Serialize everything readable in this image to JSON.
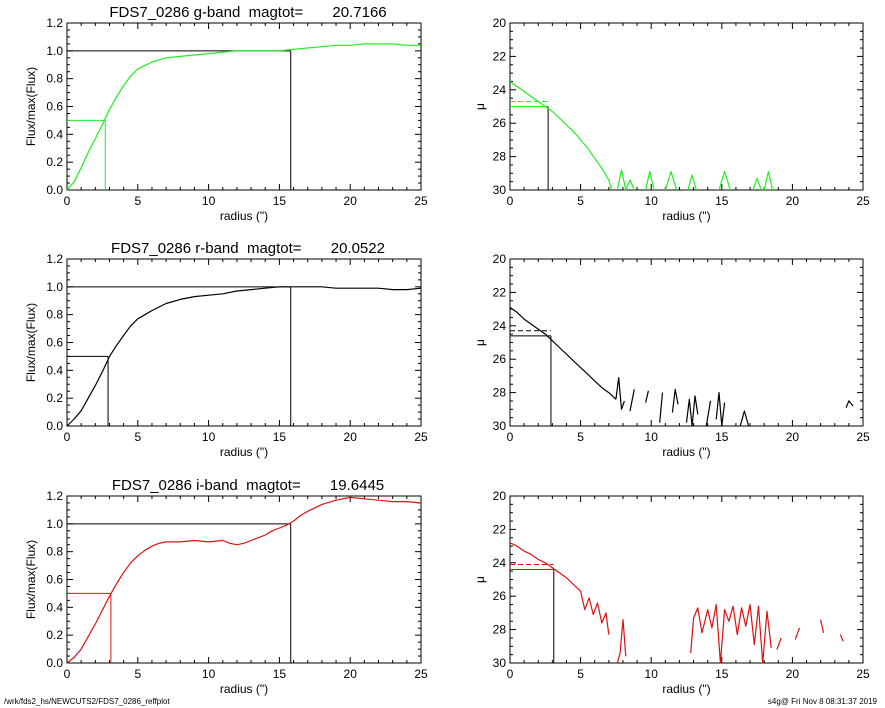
{
  "footer": {
    "path": "/wrk/fds2_hs/NEWCUTS2/FDS7_0286_reffplot",
    "stamp": "s4g@  Fri Nov  8 08:31:37 2019"
  },
  "colors": {
    "g": "#22ee22",
    "r": "#000000",
    "i": "#dd1111",
    "axis": "#000000"
  },
  "chart_data": [
    {
      "type": "line",
      "panel": "growth-curve-g",
      "title": "FDS7_0286 g-band  magtot=       20.7166",
      "color": "g",
      "xlabel": "radius (\")",
      "ylabel": "Flux/max(Flux)",
      "xlim": [
        0,
        25
      ],
      "ylim": [
        0,
        1.2
      ],
      "x_ticks": [
        0,
        5,
        10,
        15,
        20,
        25
      ],
      "y_ticks": [
        "0.0",
        "0.2",
        "0.4",
        "0.6",
        "0.8",
        "1.0",
        "1.2"
      ],
      "half_light_radius": 2.7,
      "total_radius": 15.8,
      "series": [
        {
          "x": [
            0,
            0.5,
            1,
            1.5,
            2,
            2.5,
            3,
            3.5,
            4,
            4.5,
            5,
            6,
            7,
            8,
            9,
            10,
            11,
            12,
            13,
            14,
            15,
            16,
            17,
            18,
            19,
            20,
            21,
            22,
            23,
            24,
            25
          ],
          "y": [
            0,
            0.06,
            0.16,
            0.27,
            0.37,
            0.47,
            0.58,
            0.67,
            0.75,
            0.82,
            0.87,
            0.92,
            0.95,
            0.96,
            0.97,
            0.98,
            0.99,
            1.0,
            1.0,
            1.0,
            1.0,
            1.01,
            1.02,
            1.03,
            1.04,
            1.04,
            1.05,
            1.05,
            1.05,
            1.04,
            1.04
          ]
        }
      ]
    },
    {
      "type": "line",
      "panel": "profile-g",
      "color": "g",
      "xlabel": "radius (\")",
      "ylabel": "μ",
      "xlim": [
        0,
        25
      ],
      "ylim": [
        30,
        20
      ],
      "x_ticks": [
        0,
        5,
        10,
        15,
        20,
        25
      ],
      "y_ticks": [
        "20",
        "22",
        "24",
        "26",
        "28",
        "30"
      ],
      "effective_radius": 2.7,
      "mu_e": 25.0,
      "mu_mean": 24.7,
      "series": [
        {
          "x": [
            0,
            0.5,
            1,
            1.5,
            2,
            2.5,
            3,
            3.5,
            4,
            4.5,
            5,
            5.5,
            6,
            6.5,
            7,
            7.2
          ],
          "y": [
            23.5,
            23.8,
            24.1,
            24.4,
            24.7,
            25.0,
            25.3,
            25.7,
            26.1,
            26.5,
            27.0,
            27.5,
            28.1,
            28.7,
            29.4,
            30.0
          ]
        },
        {
          "x": [
            7.6,
            7.9,
            8.2,
            8.5,
            8.8
          ],
          "y": [
            30.0,
            28.8,
            30.0,
            29.4,
            30.0
          ]
        },
        {
          "x": [
            9.6,
            9.9,
            10.2
          ],
          "y": [
            30.0,
            28.9,
            30.0
          ]
        },
        {
          "x": [
            11.0,
            11.4,
            11.8
          ],
          "y": [
            30.0,
            28.9,
            30.0
          ]
        },
        {
          "x": [
            12.6,
            12.9,
            13.2
          ],
          "y": [
            30.0,
            29.1,
            30.0
          ]
        },
        {
          "x": [
            14.8,
            15.2,
            15.6
          ],
          "y": [
            30.0,
            28.9,
            30.0
          ]
        },
        {
          "x": [
            17.2,
            17.5,
            17.8
          ],
          "y": [
            30.0,
            29.3,
            30.0
          ]
        },
        {
          "x": [
            18.0,
            18.3,
            18.6
          ],
          "y": [
            30.0,
            28.9,
            30.0
          ]
        }
      ]
    },
    {
      "type": "line",
      "panel": "growth-curve-r",
      "title": "FDS7_0286 r-band  magtot=       20.0522",
      "color": "r",
      "xlabel": "radius (\")",
      "ylabel": "Flux/max(Flux)",
      "xlim": [
        0,
        25
      ],
      "ylim": [
        0,
        1.2
      ],
      "x_ticks": [
        0,
        5,
        10,
        15,
        20,
        25
      ],
      "y_ticks": [
        "0.0",
        "0.2",
        "0.4",
        "0.6",
        "0.8",
        "1.0",
        "1.2"
      ],
      "half_light_radius": 2.9,
      "total_radius": 15.8,
      "series": [
        {
          "x": [
            0,
            0.5,
            1,
            1.5,
            2,
            2.5,
            3,
            3.5,
            4,
            4.5,
            5,
            5.5,
            6,
            7,
            8,
            9,
            10,
            11,
            12,
            13,
            14,
            15,
            16,
            17,
            18,
            19,
            20,
            21,
            22,
            23,
            24,
            25
          ],
          "y": [
            0,
            0.05,
            0.11,
            0.2,
            0.29,
            0.39,
            0.5,
            0.58,
            0.65,
            0.72,
            0.77,
            0.8,
            0.83,
            0.88,
            0.91,
            0.93,
            0.94,
            0.95,
            0.97,
            0.98,
            0.99,
            1.0,
            1.0,
            1.0,
            1.0,
            0.99,
            0.99,
            0.99,
            0.99,
            0.98,
            0.98,
            0.99
          ]
        }
      ]
    },
    {
      "type": "line",
      "panel": "profile-r",
      "color": "r",
      "xlabel": "radius (\")",
      "ylabel": "μ",
      "xlim": [
        0,
        25
      ],
      "ylim": [
        30,
        20
      ],
      "x_ticks": [
        0,
        5,
        10,
        15,
        20,
        25
      ],
      "y_ticks": [
        "20",
        "22",
        "24",
        "26",
        "28",
        "30"
      ],
      "effective_radius": 2.9,
      "mu_e": 24.6,
      "mu_mean": 24.3,
      "series": [
        {
          "x": [
            0,
            0.5,
            1,
            1.5,
            2,
            2.5,
            3,
            3.5,
            4,
            4.5,
            5,
            5.5,
            6,
            6.5,
            7,
            7.5
          ],
          "y": [
            22.9,
            23.2,
            23.6,
            23.9,
            24.2,
            24.5,
            24.9,
            25.3,
            25.7,
            26.1,
            26.5,
            26.9,
            27.3,
            27.7,
            28.0,
            28.4
          ]
        },
        {
          "x": [
            7.5,
            7.7,
            7.9,
            8.1
          ],
          "y": [
            28.4,
            27.1,
            29.0,
            28.5
          ]
        },
        {
          "x": [
            8.5,
            8.8
          ],
          "y": [
            29.1,
            27.8
          ]
        },
        {
          "x": [
            9.6,
            9.8
          ],
          "y": [
            28.6,
            27.9
          ]
        },
        {
          "x": [
            10.6,
            10.8
          ],
          "y": [
            29.8,
            28.0
          ]
        },
        {
          "x": [
            11.5,
            11.7,
            11.9
          ],
          "y": [
            29.2,
            27.8,
            28.7
          ]
        },
        {
          "x": [
            12.5,
            12.7,
            12.9,
            13.1,
            13.3
          ],
          "y": [
            29.8,
            28.4,
            30.0,
            28.2,
            29.3
          ]
        },
        {
          "x": [
            13.9,
            14.2
          ],
          "y": [
            30.0,
            28.5
          ]
        },
        {
          "x": [
            14.6,
            14.8,
            15.0,
            15.2
          ],
          "y": [
            29.6,
            28.0,
            30.0,
            28.6
          ]
        },
        {
          "x": [
            16.3,
            16.6,
            16.9
          ],
          "y": [
            30.0,
            29.1,
            30.0
          ]
        },
        {
          "x": [
            23.8,
            24.0,
            24.3
          ],
          "y": [
            28.9,
            28.5,
            28.8
          ]
        }
      ]
    },
    {
      "type": "line",
      "panel": "growth-curve-i",
      "title": "FDS7_0286 i-band  magtot=       19.6445",
      "color": "i",
      "xlabel": "radius (\")",
      "ylabel": "Flux/max(Flux)",
      "xlim": [
        0,
        25
      ],
      "ylim": [
        0,
        1.2
      ],
      "x_ticks": [
        0,
        5,
        10,
        15,
        20,
        25
      ],
      "y_ticks": [
        "0.0",
        "0.2",
        "0.4",
        "0.6",
        "0.8",
        "1.0",
        "1.2"
      ],
      "half_light_radius": 3.1,
      "total_radius": 15.8,
      "series": [
        {
          "x": [
            0,
            0.5,
            1,
            1.5,
            2,
            2.5,
            3,
            3.5,
            4,
            4.5,
            5,
            5.5,
            6,
            6.5,
            7,
            8,
            9,
            10,
            11,
            11.5,
            12,
            12.5,
            13,
            13.5,
            14,
            14.5,
            15,
            15.5,
            16,
            16.5,
            17,
            18,
            19,
            20,
            21,
            22,
            23,
            24,
            25
          ],
          "y": [
            0,
            0.04,
            0.1,
            0.19,
            0.28,
            0.38,
            0.48,
            0.57,
            0.65,
            0.72,
            0.77,
            0.81,
            0.84,
            0.86,
            0.87,
            0.87,
            0.88,
            0.87,
            0.88,
            0.86,
            0.85,
            0.86,
            0.88,
            0.9,
            0.92,
            0.95,
            0.97,
            0.99,
            1.02,
            1.06,
            1.09,
            1.14,
            1.17,
            1.19,
            1.18,
            1.17,
            1.16,
            1.16,
            1.15
          ]
        }
      ]
    },
    {
      "type": "line",
      "panel": "profile-i",
      "color": "i",
      "xlabel": "radius (\")",
      "ylabel": "μ",
      "xlim": [
        0,
        25
      ],
      "ylim": [
        30,
        20
      ],
      "x_ticks": [
        0,
        5,
        10,
        15,
        20,
        25
      ],
      "y_ticks": [
        "20",
        "22",
        "24",
        "26",
        "28",
        "30"
      ],
      "effective_radius": 3.1,
      "mu_e": 24.4,
      "mu_mean": 24.1,
      "series": [
        {
          "x": [
            0,
            0.5,
            1,
            1.5,
            2,
            2.5,
            3,
            3.5,
            4,
            4.5,
            5,
            5.3,
            5.6,
            5.9,
            6.2,
            6.5,
            6.8,
            7.0
          ],
          "y": [
            22.8,
            23.0,
            23.3,
            23.5,
            23.8,
            24.0,
            24.3,
            24.6,
            24.9,
            25.3,
            25.7,
            26.8,
            26.1,
            27.1,
            26.4,
            27.6,
            27.0,
            28.3
          ]
        },
        {
          "x": [
            7.6,
            7.8,
            8.0,
            8.2
          ],
          "y": [
            30.0,
            29.4,
            27.4,
            29.6
          ]
        },
        {
          "x": [
            12.8,
            13.0,
            13.3,
            13.6,
            14.0,
            14.3,
            14.6,
            14.9,
            15.2,
            15.5,
            15.8,
            16.1,
            16.4,
            16.7,
            17.0,
            17.3,
            17.6,
            17.9,
            18.2,
            18.5
          ],
          "y": [
            29.4,
            27.3,
            26.7,
            28.2,
            26.8,
            27.9,
            26.5,
            30.0,
            26.8,
            27.5,
            26.6,
            28.3,
            26.7,
            27.8,
            26.5,
            28.9,
            26.6,
            30.0,
            26.9,
            29.1
          ]
        },
        {
          "x": [
            18.9,
            19.2
          ],
          "y": [
            29.2,
            28.5
          ]
        },
        {
          "x": [
            20.2,
            20.5
          ],
          "y": [
            28.6,
            27.9
          ]
        },
        {
          "x": [
            22.0,
            22.2
          ],
          "y": [
            27.4,
            28.2
          ]
        },
        {
          "x": [
            23.4,
            23.6
          ],
          "y": [
            28.3,
            28.7
          ]
        }
      ]
    }
  ]
}
